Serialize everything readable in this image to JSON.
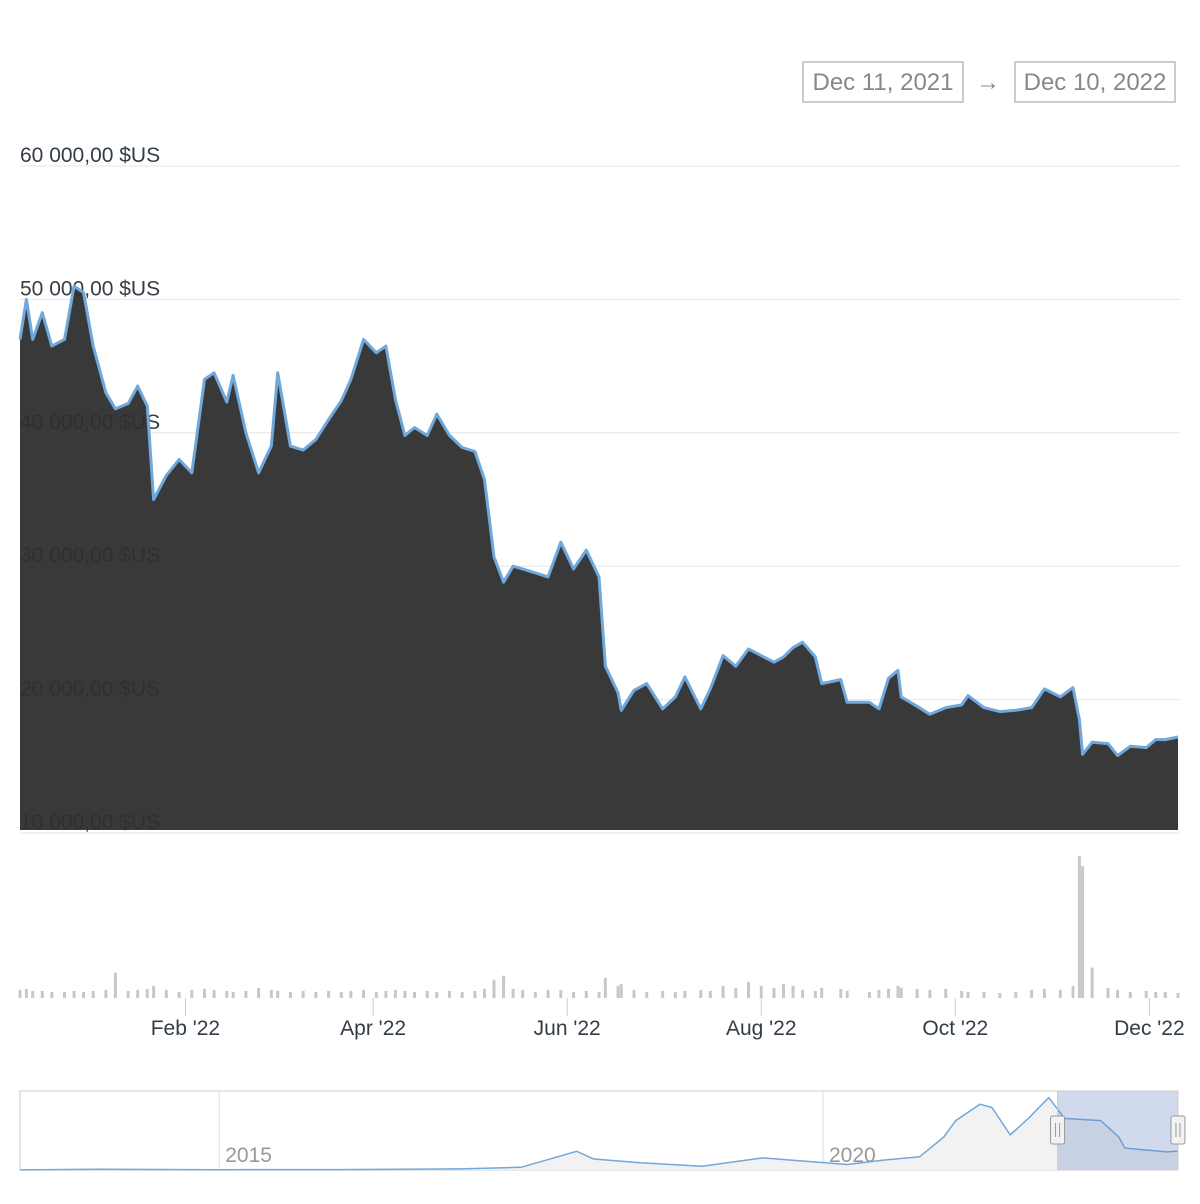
{
  "chart_data": {
    "type": "area",
    "range_start": "Dec 11, 2021",
    "range_arrow": "→",
    "range_end": "Dec 10, 2022",
    "color": "#6fa8dc",
    "x": [
      "2021-12-11",
      "2021-12-13",
      "2021-12-15",
      "2021-12-18",
      "2021-12-21",
      "2021-12-25",
      "2021-12-28",
      "2021-12-31",
      "2022-01-03",
      "2022-01-07",
      "2022-01-10",
      "2022-01-14",
      "2022-01-17",
      "2022-01-20",
      "2022-01-22",
      "2022-01-26",
      "2022-01-30",
      "2022-02-03",
      "2022-02-07",
      "2022-02-10",
      "2022-02-14",
      "2022-02-16",
      "2022-02-20",
      "2022-02-24",
      "2022-02-28",
      "2022-03-02",
      "2022-03-06",
      "2022-03-10",
      "2022-03-14",
      "2022-03-18",
      "2022-03-22",
      "2022-03-25",
      "2022-03-29",
      "2022-04-02",
      "2022-04-05",
      "2022-04-08",
      "2022-04-11",
      "2022-04-14",
      "2022-04-18",
      "2022-04-21",
      "2022-04-25",
      "2022-04-29",
      "2022-05-03",
      "2022-05-06",
      "2022-05-09",
      "2022-05-12",
      "2022-05-15",
      "2022-05-18",
      "2022-05-22",
      "2022-05-26",
      "2022-05-30",
      "2022-06-03",
      "2022-06-07",
      "2022-06-11",
      "2022-06-13",
      "2022-06-17",
      "2022-06-18",
      "2022-06-22",
      "2022-06-26",
      "2022-07-01",
      "2022-07-05",
      "2022-07-08",
      "2022-07-13",
      "2022-07-16",
      "2022-07-20",
      "2022-07-24",
      "2022-07-28",
      "2022-08-01",
      "2022-08-05",
      "2022-08-08",
      "2022-08-11",
      "2022-08-14",
      "2022-08-18",
      "2022-08-20",
      "2022-08-26",
      "2022-08-28",
      "2022-09-04",
      "2022-09-07",
      "2022-09-10",
      "2022-09-13",
      "2022-09-14",
      "2022-09-19",
      "2022-09-23",
      "2022-09-28",
      "2022-10-03",
      "2022-10-05",
      "2022-10-10",
      "2022-10-15",
      "2022-10-20",
      "2022-10-25",
      "2022-10-29",
      "2022-11-03",
      "2022-11-07",
      "2022-11-09",
      "2022-11-10",
      "2022-11-13",
      "2022-11-18",
      "2022-11-21",
      "2022-11-25",
      "2022-11-30",
      "2022-12-03",
      "2022-12-06",
      "2022-12-10"
    ],
    "values": [
      47000,
      50000,
      47000,
      49000,
      46500,
      47000,
      51000,
      50500,
      46500,
      43000,
      41800,
      42200,
      43500,
      42000,
      35000,
      36800,
      38000,
      37000,
      44000,
      44500,
      42300,
      44300,
      40000,
      37000,
      39000,
      44500,
      39000,
      38700,
      39500,
      41000,
      42400,
      44000,
      47000,
      46000,
      46500,
      42500,
      39800,
      40400,
      39800,
      41400,
      39800,
      38900,
      38600,
      36500,
      30700,
      28800,
      30000,
      29800,
      29500,
      29200,
      31800,
      29800,
      31200,
      29200,
      22500,
      20500,
      19200,
      20700,
      21200,
      19300,
      20200,
      21700,
      19300,
      20800,
      23300,
      22500,
      23800,
      23300,
      22800,
      23200,
      23900,
      24300,
      23200,
      21200,
      21500,
      19800,
      19800,
      19300,
      21600,
      22200,
      20200,
      19500,
      18900,
      19400,
      19600,
      20300,
      19400,
      19100,
      19200,
      19400,
      20800,
      20200,
      20900,
      18500,
      15900,
      16800,
      16700,
      15800,
      16500,
      16400,
      17000,
      17000,
      17200
    ],
    "volume": [
      8,
      9,
      7,
      7,
      6,
      6,
      7,
      6,
      7,
      8,
      25,
      7,
      8,
      9,
      12,
      8,
      6,
      8,
      9,
      8,
      7,
      6,
      7,
      10,
      8,
      7,
      6,
      7,
      6,
      7,
      6,
      7,
      8,
      6,
      7,
      8,
      7,
      6,
      7,
      6,
      7,
      6,
      7,
      9,
      18,
      22,
      9,
      8,
      6,
      8,
      8,
      6,
      7,
      6,
      20,
      12,
      14,
      8,
      6,
      7,
      6,
      7,
      8,
      7,
      12,
      10,
      16,
      12,
      10,
      14,
      12,
      8,
      7,
      10,
      9,
      7,
      6,
      8,
      9,
      12,
      10,
      9,
      8,
      9,
      7,
      6,
      6,
      5,
      6,
      8,
      9,
      8,
      12,
      140,
      130,
      30,
      10,
      8,
      6,
      7,
      6,
      6,
      5
    ],
    "volume_color": "#c8c8c8",
    "xlim": [
      "2021-12-11",
      "2022-12-10"
    ],
    "xticks": [
      {
        "value": "2022-02-01",
        "label": "Feb '22"
      },
      {
        "value": "2022-04-01",
        "label": "Apr '22"
      },
      {
        "value": "2022-06-01",
        "label": "Jun '22"
      },
      {
        "value": "2022-08-01",
        "label": "Aug '22"
      },
      {
        "value": "2022-10-01",
        "label": "Oct '22"
      },
      {
        "value": "2022-12-01",
        "label": "Dec '22"
      }
    ],
    "ylim": [
      10000,
      60000
    ],
    "yticks": [
      {
        "value": 10000,
        "label": "10 000,00 $US"
      },
      {
        "value": 20000,
        "label": "20 000,00 $US"
      },
      {
        "value": 30000,
        "label": "30 000,00 $US"
      },
      {
        "value": 40000,
        "label": "40 000,00 $US"
      },
      {
        "value": 50000,
        "label": "50 000,00 $US"
      },
      {
        "value": 60000,
        "label": "60 000,00 $US"
      }
    ],
    "grid": true,
    "navigator": {
      "x": [
        2013.35,
        2014,
        2015,
        2016,
        2017,
        2017.5,
        2017.96,
        2018.1,
        2018.5,
        2019,
        2019.5,
        2020.2,
        2020.5,
        2020.8,
        2021.0,
        2021.1,
        2021.3,
        2021.4,
        2021.55,
        2021.7,
        2021.87,
        2022.0,
        2022.3,
        2022.45,
        2022.5,
        2022.85,
        2022.94
      ],
      "values": [
        100,
        600,
        300,
        400,
        1000,
        2500,
        17000,
        10000,
        6500,
        3500,
        11000,
        5000,
        9000,
        12000,
        30000,
        45000,
        60000,
        57000,
        32000,
        47000,
        66000,
        47000,
        45000,
        30000,
        20000,
        16500,
        17200
      ],
      "xlim": [
        2013.35,
        2022.94
      ],
      "ylim": [
        0,
        72000
      ],
      "xticks": [
        2015,
        2020
      ]
    }
  }
}
